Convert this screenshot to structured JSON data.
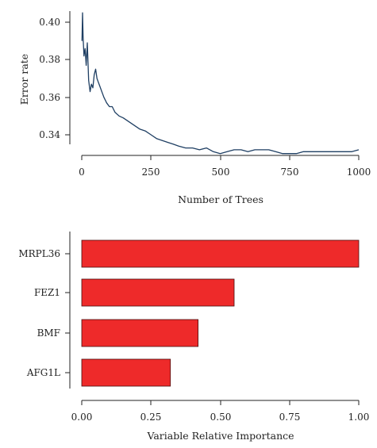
{
  "chart_data": [
    {
      "type": "line",
      "title": "",
      "xlabel": "Number of Trees",
      "ylabel": "Error rate",
      "xlim": [
        0,
        1000
      ],
      "ylim": [
        0.328,
        0.406
      ],
      "xticks": [
        "0",
        "250",
        "500",
        "750",
        "1000"
      ],
      "yticks": [
        "0.34",
        "0.36",
        "0.38",
        "0.40"
      ],
      "grid": false,
      "color": "#1f3f63",
      "series": [
        {
          "x": [
            1,
            3,
            5,
            8,
            12,
            16,
            20,
            25,
            30,
            35,
            40,
            45,
            50,
            55,
            60,
            65,
            70,
            80,
            90,
            100,
            110,
            120,
            135,
            150,
            170,
            190,
            210,
            230,
            250,
            270,
            290,
            310,
            330,
            350,
            375,
            400,
            425,
            450,
            475,
            500,
            525,
            550,
            575,
            600,
            625,
            650,
            675,
            700,
            725,
            750,
            775,
            800,
            825,
            850,
            875,
            900,
            925,
            950,
            975,
            1000
          ],
          "y": [
            0.39,
            0.405,
            0.392,
            0.382,
            0.386,
            0.377,
            0.389,
            0.369,
            0.363,
            0.367,
            0.365,
            0.372,
            0.375,
            0.37,
            0.368,
            0.366,
            0.364,
            0.36,
            0.357,
            0.355,
            0.355,
            0.352,
            0.35,
            0.349,
            0.347,
            0.345,
            0.343,
            0.342,
            0.34,
            0.338,
            0.337,
            0.336,
            0.335,
            0.334,
            0.333,
            0.333,
            0.332,
            0.333,
            0.331,
            0.33,
            0.331,
            0.332,
            0.332,
            0.331,
            0.332,
            0.332,
            0.332,
            0.331,
            0.33,
            0.33,
            0.33,
            0.331,
            0.331,
            0.331,
            0.331,
            0.331,
            0.331,
            0.331,
            0.331,
            0.332
          ]
        }
      ]
    },
    {
      "type": "bar",
      "orientation": "horizontal",
      "title": "",
      "xlabel": "Variable Relative Importance",
      "ylabel": "",
      "categories": [
        "MRPL36",
        "FEZ1",
        "BMF",
        "AFG1L"
      ],
      "values": [
        1.0,
        0.55,
        0.42,
        0.32
      ],
      "xlim": [
        0,
        1.0
      ],
      "xticks": [
        "0.00",
        "0.25",
        "0.50",
        "0.75",
        "1.00"
      ],
      "grid": false,
      "bar_color": "#ee2a2a",
      "edge_color": "#4a1010"
    }
  ]
}
